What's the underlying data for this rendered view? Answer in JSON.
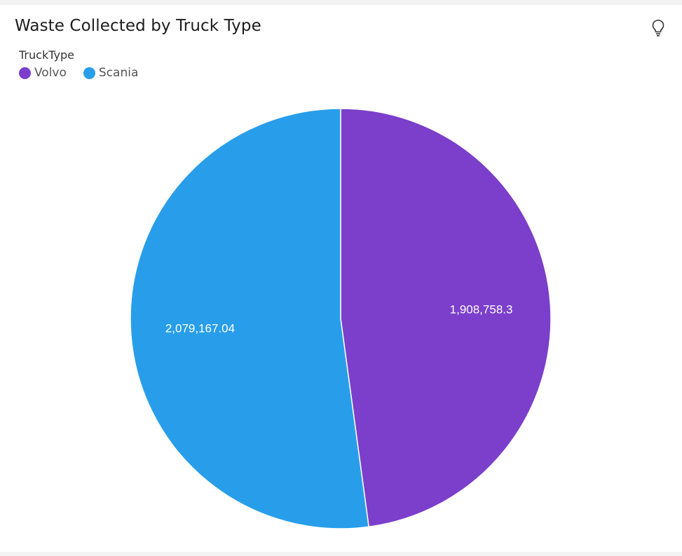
{
  "visual": {
    "title": "Waste Collected by Truck Type",
    "insight_icon": "lightbulb-icon"
  },
  "legend": {
    "title": "TruckType",
    "items": [
      {
        "label": "Volvo",
        "color": "#7b3fcb"
      },
      {
        "label": "Scania",
        "color": "#289eea"
      }
    ]
  },
  "chart_data": {
    "type": "pie",
    "title": "Waste Collected by Truck Type",
    "categories": [
      "Volvo",
      "Scania"
    ],
    "values": [
      1908758.3,
      2079167.04
    ],
    "value_labels": [
      "1,908,758.3",
      "2,079,167.04"
    ],
    "colors": [
      "#7b3fcb",
      "#289eea"
    ],
    "legend_title": "TruckType",
    "legend_position": "top-left"
  }
}
